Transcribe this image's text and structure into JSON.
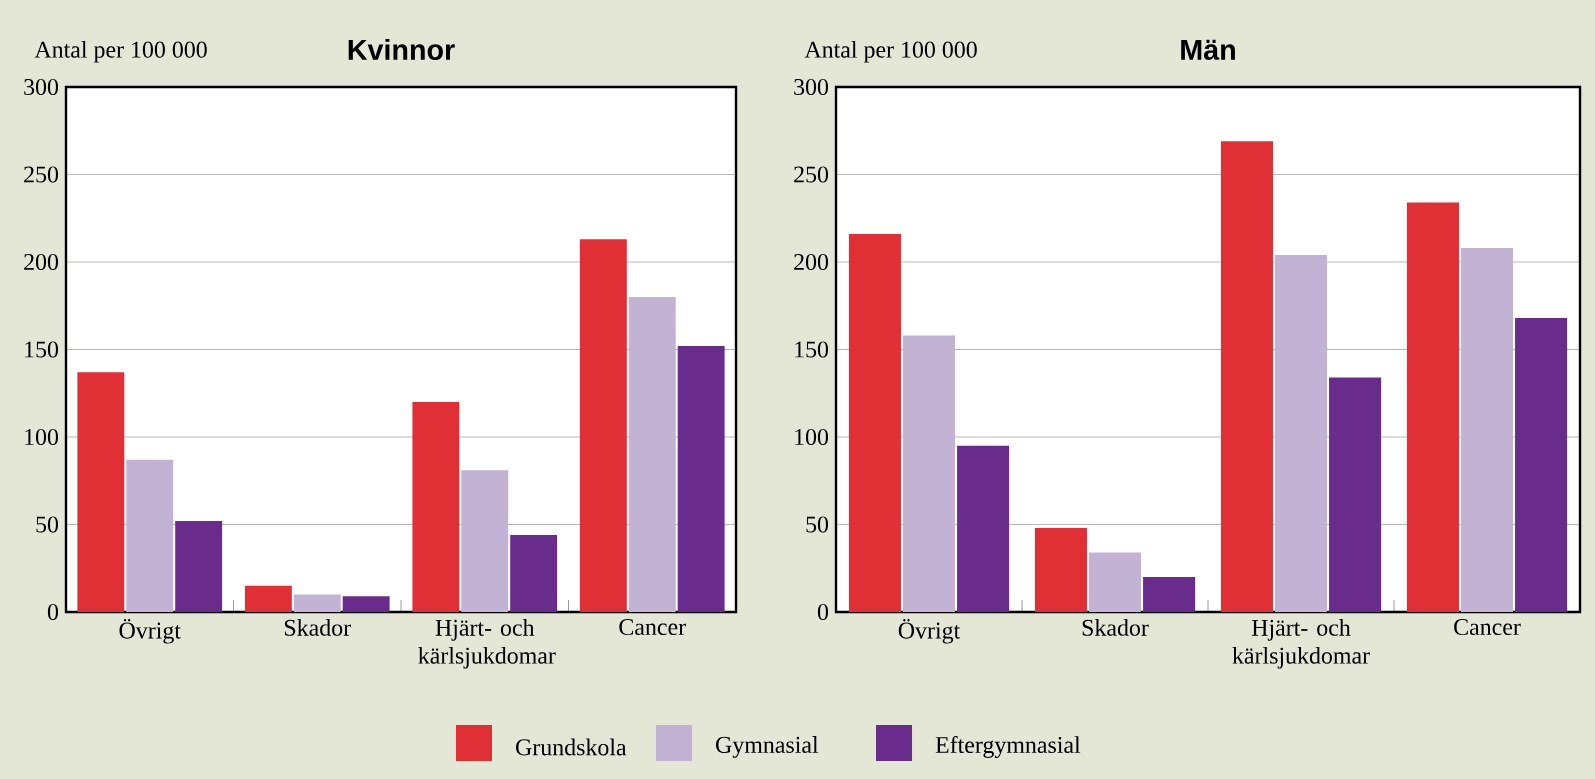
{
  "chart_data": [
    {
      "type": "bar",
      "title": "Kvinnor",
      "ylabel": "Antal per 100 000",
      "categories": [
        "Övrigt",
        "Skador",
        "Hjärt- och kärlsjukdomar",
        "Cancer"
      ],
      "series": [
        {
          "name": "Grundskola",
          "color": "#e03036",
          "values": [
            137,
            15,
            120,
            213
          ]
        },
        {
          "name": "Gymnasial",
          "color": "#c2b3d4",
          "values": [
            87,
            10,
            81,
            180
          ]
        },
        {
          "name": "Eftergymnasial",
          "color": "#6a2c8c",
          "values": [
            52,
            9,
            44,
            152
          ]
        }
      ],
      "ylim": [
        0,
        300
      ],
      "yticks": [
        0,
        50,
        100,
        150,
        200,
        250,
        300
      ],
      "grid": "y",
      "legend": "bottom"
    },
    {
      "type": "bar",
      "title": "Män",
      "ylabel": "Antal per 100 000",
      "categories": [
        "Övrigt",
        "Skador",
        "Hjärt- och kärlsjukdomar",
        "Cancer"
      ],
      "series": [
        {
          "color": "#e03036",
          "values": [
            216,
            48,
            269,
            234
          ]
        },
        {
          "color": "#c2b3d4",
          "values": [
            158,
            34,
            204,
            208
          ]
        },
        {
          "color": "#6a2c8c",
          "values": [
            95,
            20,
            134,
            168
          ]
        }
      ],
      "ylim": [
        0,
        300
      ],
      "yticks": [
        0,
        50,
        100,
        150,
        200,
        250,
        300
      ],
      "grid": "y"
    }
  ]
}
